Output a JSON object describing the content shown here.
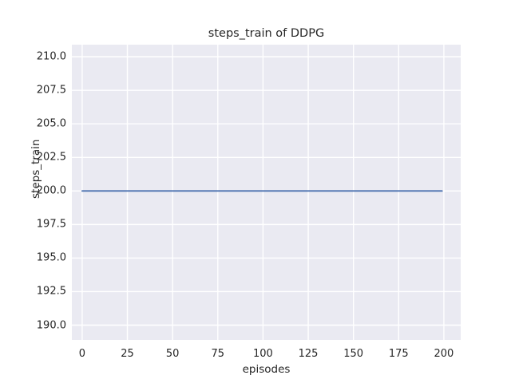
{
  "figure": {
    "title": "steps_train of DDPG",
    "xlabel": "episodes",
    "ylabel": "steps_train"
  },
  "chart_data": {
    "type": "line",
    "title": "steps_train of DDPG",
    "xlabel": "episodes",
    "ylabel": "steps_train",
    "x_ticks": [
      0,
      25,
      50,
      75,
      100,
      125,
      150,
      175,
      200
    ],
    "x_tick_labels": [
      "0",
      "25",
      "50",
      "75",
      "100",
      "125",
      "150",
      "175",
      "200"
    ],
    "y_ticks": [
      190.0,
      192.5,
      195.0,
      197.5,
      200.0,
      202.5,
      205.0,
      207.5,
      210.0
    ],
    "y_tick_labels": [
      "190.0",
      "192.5",
      "195.0",
      "197.5",
      "200.0",
      "202.5",
      "205.0",
      "207.5",
      "210.0"
    ],
    "xlim": [
      -5.7,
      209.3
    ],
    "ylim": [
      188.9,
      210.9
    ],
    "grid": true,
    "legend": false,
    "series": [
      {
        "name": "steps_train",
        "color": "#4c72b0",
        "constant_value": 200,
        "x": [
          0,
          199
        ],
        "y": [
          200,
          200
        ]
      }
    ],
    "styles": {
      "figure_bg": "#ffffff",
      "plot_bg": "#eaeaf2",
      "grid_color": "#ffffff",
      "text_color": "#262626",
      "grid_width": 1.4,
      "line_width": 1.9
    }
  }
}
